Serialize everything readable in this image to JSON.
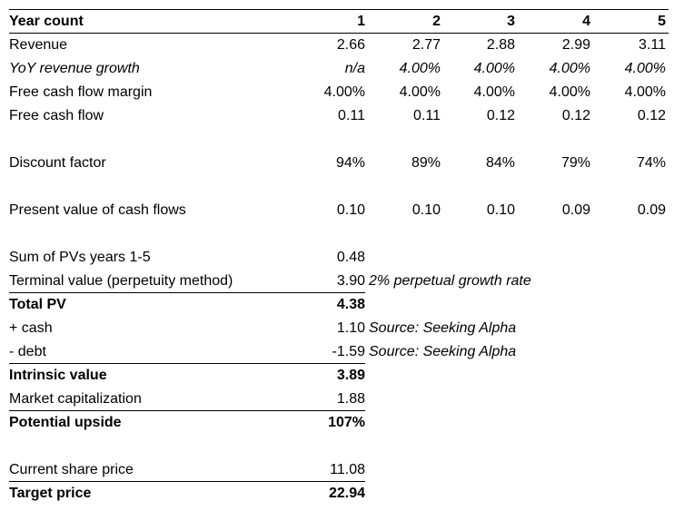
{
  "header": {
    "label": "Year count",
    "years": [
      "1",
      "2",
      "3",
      "4",
      "5"
    ]
  },
  "rows": {
    "revenue": {
      "label": "Revenue",
      "values": [
        "2.66",
        "2.77",
        "2.88",
        "2.99",
        "3.11"
      ]
    },
    "yoy_growth": {
      "label": "YoY revenue growth",
      "values": [
        "n/a",
        "4.00%",
        "4.00%",
        "4.00%",
        "4.00%"
      ]
    },
    "fcf_margin": {
      "label": "Free cash flow margin",
      "values": [
        "4.00%",
        "4.00%",
        "4.00%",
        "4.00%",
        "4.00%"
      ]
    },
    "fcf": {
      "label": "Free cash flow",
      "values": [
        "0.11",
        "0.11",
        "0.12",
        "0.12",
        "0.12"
      ]
    },
    "discount_factor": {
      "label": "Discount factor",
      "values": [
        "94%",
        "89%",
        "84%",
        "79%",
        "74%"
      ]
    },
    "pv_cash_flows": {
      "label": "Present value of cash flows",
      "values": [
        "0.10",
        "0.10",
        "0.10",
        "0.09",
        "0.09"
      ]
    }
  },
  "summary": {
    "sum_pvs": {
      "label": "Sum of PVs years 1-5",
      "value": "0.48"
    },
    "terminal_value": {
      "label": "Terminal value (perpetuity method)",
      "value": "3.90",
      "note": "2% perpetual growth rate"
    },
    "total_pv": {
      "label": "Total PV",
      "value": "4.38"
    },
    "cash": {
      "label": "+ cash",
      "value": "1.10",
      "note": "Source: Seeking Alpha"
    },
    "debt": {
      "label": "- debt",
      "value": "-1.59",
      "note": "Source: Seeking Alpha"
    },
    "intrinsic_value": {
      "label": "Intrinsic value",
      "value": "3.89"
    },
    "market_cap": {
      "label": "Market capitalization",
      "value": "1.88"
    },
    "potential_upside": {
      "label": "Potential upside",
      "value": "107%"
    },
    "current_price": {
      "label": "Current share price",
      "value": "11.08"
    },
    "target_price": {
      "label": "Target price",
      "value": "22.94"
    }
  }
}
